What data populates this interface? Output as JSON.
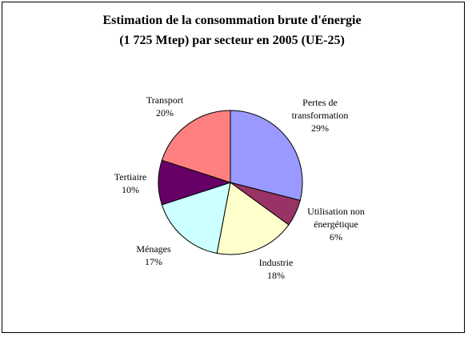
{
  "chart_data": {
    "type": "pie",
    "title_lines": [
      "Estimation de la consommation brute d'énergie",
      "(1 725 Mtep) par secteur en 2005 (UE-25)"
    ],
    "categories": [
      "Pertes de transformation",
      "Utilisation non énergétique",
      "Industrie",
      "Ménages",
      "Tertiaire",
      "Transport"
    ],
    "values": [
      29,
      6,
      18,
      17,
      10,
      20
    ],
    "value_labels": [
      "29%",
      "6%",
      "18%",
      "17%",
      "10%",
      "20%"
    ],
    "colors": [
      "#9999ff",
      "#993366",
      "#ffffcc",
      "#ccffff",
      "#660066",
      "#ff8080"
    ]
  }
}
